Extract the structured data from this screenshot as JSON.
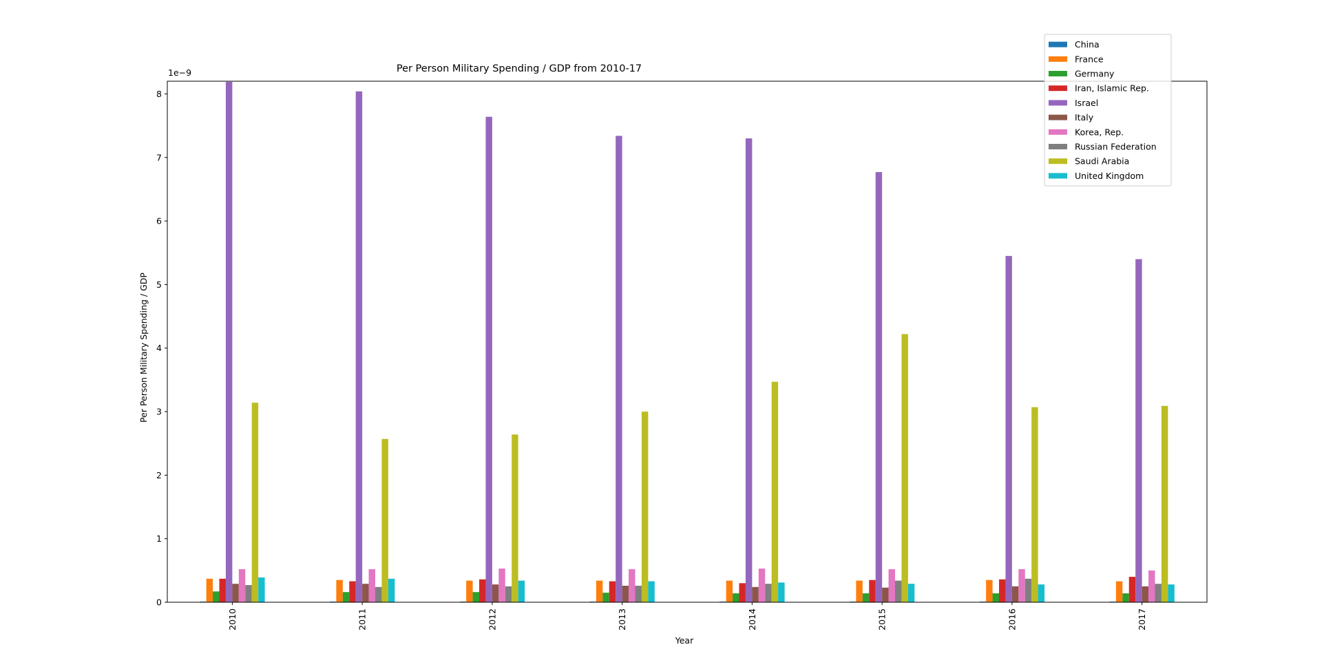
{
  "chart_data": {
    "type": "bar",
    "title": "Per Person Military Spending / GDP from 2010-17",
    "xlabel": "Year",
    "ylabel": "Per Person Military Spending / GDP",
    "y_offset_label": "1e−9",
    "ylim": [
      0,
      8.2
    ],
    "yticks": [
      "0",
      "1",
      "2",
      "3",
      "4",
      "5",
      "6",
      "7",
      "8"
    ],
    "categories": [
      "2010",
      "2011",
      "2012",
      "2013",
      "2014",
      "2015",
      "2016",
      "2017"
    ],
    "legend_position": "top-right",
    "series": [
      {
        "name": "China",
        "color": "#1f77b4",
        "values": [
          0.01,
          0.01,
          0.01,
          0.01,
          0.01,
          0.01,
          0.01,
          0.01
        ]
      },
      {
        "name": "France",
        "color": "#ff7f0e",
        "values": [
          0.37,
          0.35,
          0.34,
          0.34,
          0.34,
          0.34,
          0.35,
          0.33
        ]
      },
      {
        "name": "Germany",
        "color": "#2ca02c",
        "values": [
          0.17,
          0.16,
          0.16,
          0.15,
          0.14,
          0.14,
          0.14,
          0.14
        ]
      },
      {
        "name": "Iran, Islamic Rep.",
        "color": "#d62728",
        "values": [
          0.37,
          0.33,
          0.36,
          0.33,
          0.3,
          0.35,
          0.36,
          0.4
        ]
      },
      {
        "name": "Israel",
        "color": "#9467bd",
        "values": [
          8.19,
          8.04,
          7.64,
          7.34,
          7.3,
          6.77,
          5.45,
          5.4
        ]
      },
      {
        "name": "Italy",
        "color": "#8c564b",
        "values": [
          0.29,
          0.29,
          0.28,
          0.26,
          0.24,
          0.23,
          0.25,
          0.25
        ]
      },
      {
        "name": "Korea, Rep.",
        "color": "#e377c2",
        "values": [
          0.52,
          0.52,
          0.53,
          0.52,
          0.53,
          0.52,
          0.52,
          0.5
        ]
      },
      {
        "name": "Russian Federation",
        "color": "#7f7f7f",
        "values": [
          0.27,
          0.24,
          0.25,
          0.26,
          0.29,
          0.34,
          0.37,
          0.29
        ]
      },
      {
        "name": "Saudi Arabia",
        "color": "#bcbd22",
        "values": [
          3.14,
          2.57,
          2.64,
          3.0,
          3.47,
          4.22,
          3.07,
          3.09
        ]
      },
      {
        "name": "United Kingdom",
        "color": "#17becf",
        "values": [
          0.39,
          0.37,
          0.34,
          0.33,
          0.31,
          0.29,
          0.28,
          0.28
        ]
      }
    ]
  }
}
